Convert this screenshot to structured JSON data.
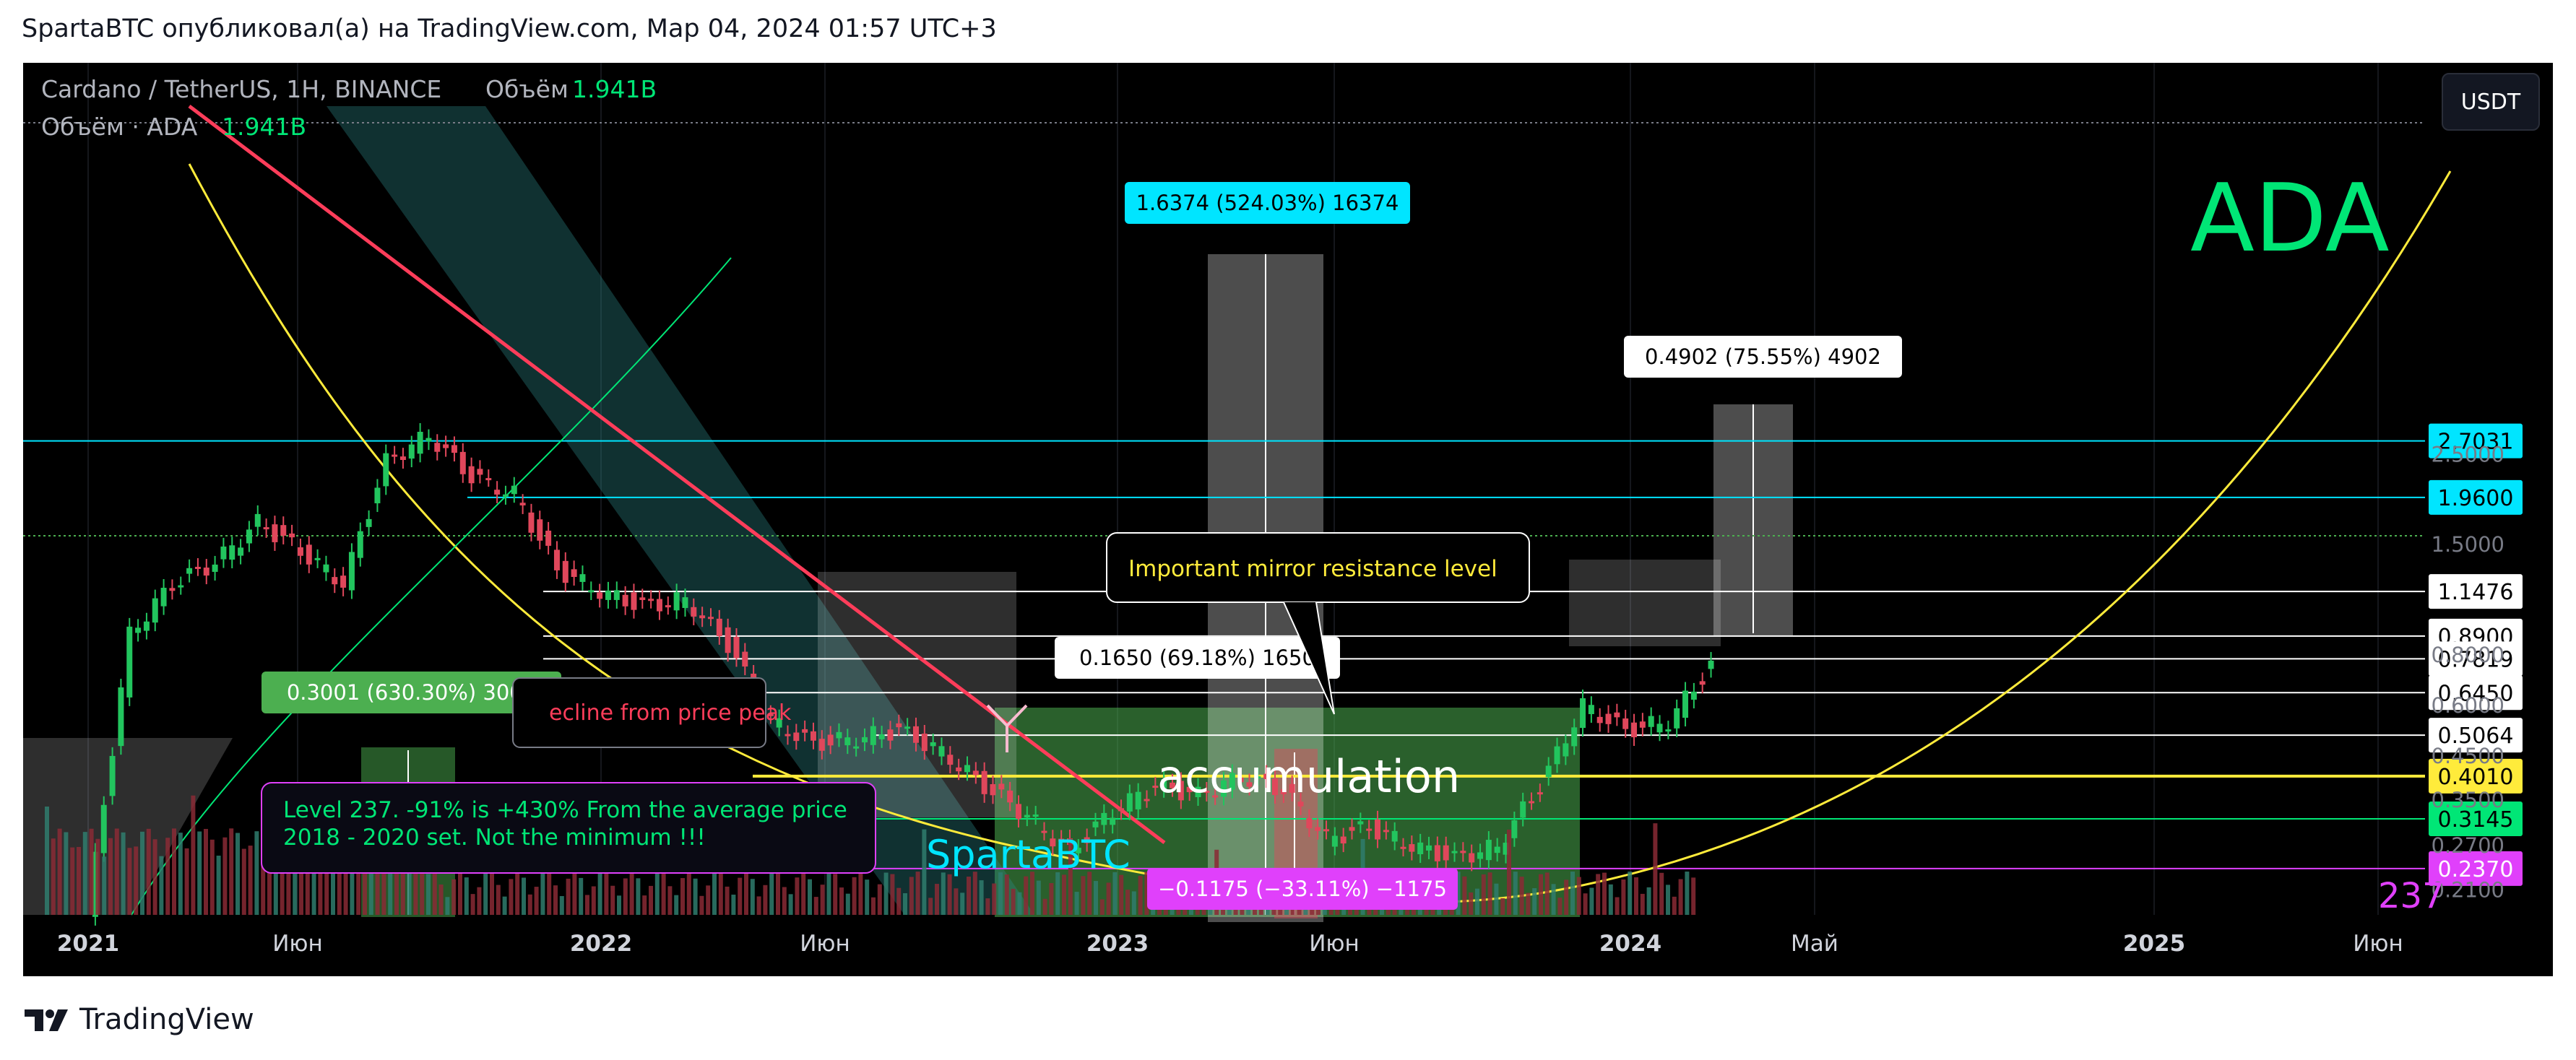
{
  "caption": "SpartaBTC опубликовал(а) на TradingView.com, Мар 04, 2024 01:57 UTC+3",
  "header": {
    "symbol_line": "Cardano / TetherUS, 1H, BINANCE",
    "volume_label": "Объём",
    "volume_value": "1.941B",
    "volume_line_prefix": "Объём · ADA",
    "volume_line_value": "1.941B"
  },
  "currency_button": "USDT",
  "footer": {
    "brand": "TradingView"
  },
  "colors": {
    "background": "#000000",
    "up": "#22c55e",
    "down": "#e0475b",
    "cyan": "#00e5ff",
    "yellow": "#ffeb3b",
    "magenta": "#e040fb",
    "green_label": "#4caf50"
  },
  "chart_data": {
    "type": "candlestick",
    "symbol": "ADA",
    "x_ticks": [
      "2021",
      "Июн",
      "2022",
      "Июн",
      "2023",
      "Июн",
      "2024",
      "Май",
      "2025",
      "Июн"
    ],
    "y_scale": "log",
    "y_ticks": [
      "2.5000",
      "1.5000",
      "0.8000",
      "0.6000",
      "0.4500",
      "0.3500",
      "0.2700",
      "0.2100"
    ],
    "price_levels": [
      {
        "label": "2.7031",
        "value": 2.7031,
        "style": "cyan"
      },
      {
        "label": "1.9600",
        "value": 1.96,
        "style": "cyan"
      },
      {
        "label": "1.1476",
        "value": 1.1476,
        "style": "white"
      },
      {
        "label": "0.8900",
        "value": 0.89,
        "style": "white"
      },
      {
        "label": "0.7819",
        "value": 0.7819,
        "style": "white"
      },
      {
        "label": "0.6450",
        "value": 0.645,
        "style": "white"
      },
      {
        "label": "0.5064",
        "value": 0.5064,
        "style": "white"
      },
      {
        "label": "0.4010",
        "value": 0.401,
        "style": "yellow"
      },
      {
        "label": "0.3145",
        "value": 0.3145,
        "style": "green"
      },
      {
        "label": "0.2370",
        "value": 0.237,
        "style": "magenta"
      }
    ],
    "measurements": [
      {
        "text": "1.6374 (524.03%) 16374",
        "style": "cyan"
      },
      {
        "text": "0.4902 (75.55%) 4902",
        "style": "white"
      },
      {
        "text": "0.1650 (69.18%) 1650",
        "style": "white"
      },
      {
        "text": "0.3001 (630.30%) 3001",
        "style": "green"
      },
      {
        "text": "−0.1175 (−33.11%) −1175",
        "style": "magenta"
      }
    ],
    "annotations": {
      "big_label": "ADA",
      "level_237": "237",
      "mirror_note": "Important mirror resistance level",
      "decline_note": "ecline from price peak",
      "accumulation": "accumulation",
      "watermark": "SpartaBTC",
      "level_note_1": "Level 237. -91% is +430% From the average price",
      "level_note_2": "2018 - 2020 set. Not the minimum !!!"
    },
    "price_path": [
      [
        "2021-01",
        0.18
      ],
      [
        "2021-02",
        0.9
      ],
      [
        "2021-03",
        1.2
      ],
      [
        "2021-04",
        1.35
      ],
      [
        "2021-05",
        1.7
      ],
      [
        "2021-06",
        1.45
      ],
      [
        "2021-07",
        1.2
      ],
      [
        "2021-08",
        2.4
      ],
      [
        "2021-09",
        2.8
      ],
      [
        "2021-10",
        2.2
      ],
      [
        "2021-11",
        2.0
      ],
      [
        "2021-12",
        1.3
      ],
      [
        "2022-01",
        1.15
      ],
      [
        "2022-02",
        1.05
      ],
      [
        "2022-03",
        1.1
      ],
      [
        "2022-04",
        0.85
      ],
      [
        "2022-05",
        0.55
      ],
      [
        "2022-06",
        0.48
      ],
      [
        "2022-07",
        0.5
      ],
      [
        "2022-08",
        0.52
      ],
      [
        "2022-09",
        0.46
      ],
      [
        "2022-10",
        0.38
      ],
      [
        "2022-11",
        0.32
      ],
      [
        "2022-12",
        0.26
      ],
      [
        "2023-01",
        0.33
      ],
      [
        "2023-02",
        0.38
      ],
      [
        "2023-03",
        0.36
      ],
      [
        "2023-04",
        0.4
      ],
      [
        "2023-05",
        0.37
      ],
      [
        "2023-06",
        0.28
      ],
      [
        "2023-07",
        0.3
      ],
      [
        "2023-08",
        0.27
      ],
      [
        "2023-09",
        0.25
      ],
      [
        "2023-10",
        0.27
      ],
      [
        "2023-11",
        0.38
      ],
      [
        "2023-12",
        0.6
      ],
      [
        "2024-01",
        0.52
      ],
      [
        "2024-02",
        0.55
      ],
      [
        "2024-03",
        0.75
      ]
    ]
  }
}
